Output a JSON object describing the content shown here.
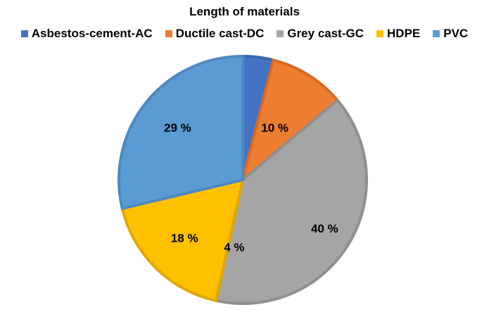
{
  "chart_data": {
    "type": "pie",
    "title": "Length of materials",
    "legend_position": "top",
    "series": [
      {
        "values": [
          4,
          10,
          40,
          18,
          29
        ],
        "labels": [
          "4 %",
          "10 %",
          "40 %",
          "18 %",
          "29 %"
        ]
      }
    ],
    "categories": [
      "Asbestos-cement-AC",
      "Ductile cast-DC",
      "Grey cast-GC",
      "HDPE",
      "PVC"
    ],
    "colors": [
      "#4472C4",
      "#ED7D31",
      "#A5A5A5",
      "#FFC000",
      "#5B9BD5"
    ],
    "border_colors": [
      "#3A64B0",
      "#D96A22",
      "#8F8F8F",
      "#E0A800",
      "#4D88C0"
    ]
  }
}
